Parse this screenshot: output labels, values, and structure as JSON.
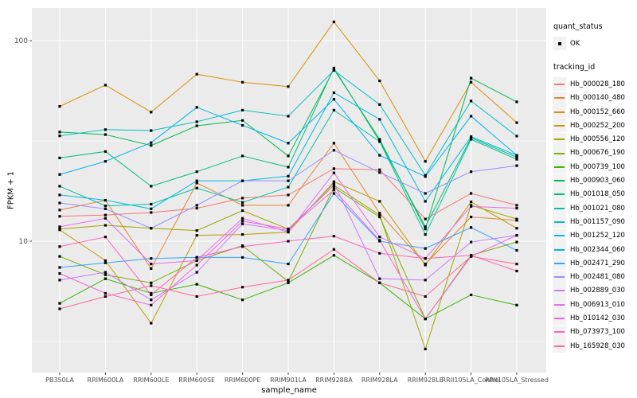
{
  "chart_data": {
    "type": "line",
    "title": "",
    "xlabel": "sample_name",
    "ylabel": "FPKM + 1",
    "y_scale": "log10",
    "ylim": [
      2.2,
      145
    ],
    "y_ticks": [
      {
        "value": 100,
        "label": "100"
      },
      {
        "value": 10,
        "label": "10"
      }
    ],
    "y_minor": [
      31.62,
      3.162
    ],
    "grid": "on",
    "legend_position": "right",
    "panel_color": "#EBEBEB",
    "gridline_color": "#FFFFFF",
    "point_color": "#000000",
    "tick_label_color": "#4D4D4D",
    "categories": [
      "PB350LA",
      "RRIM600LA",
      "RRIM600LE",
      "RRIM600SE",
      "RRIM600PE",
      "RRIM901LA",
      "RRIM928BA",
      "RRIM928LA",
      "RRIM928LE",
      "RRII105LA_Control",
      "RRII105LA_Stressed"
    ],
    "series": [
      {
        "name": "Hb_000028_180",
        "color": "#F8766D",
        "values": [
          13.3,
          13.5,
          13.9,
          14.6,
          16.4,
          17.0,
          23.0,
          22.7,
          12.9,
          17.3,
          15.1
        ]
      },
      {
        "name": "Hb_000140_480",
        "color": "#EA8331",
        "values": [
          14.3,
          16.0,
          7.3,
          19.5,
          15.1,
          15.1,
          30.8,
          13.8,
          7.7,
          13.2,
          12.7
        ]
      },
      {
        "name": "Hb_000152_660",
        "color": "#D89000",
        "values": [
          47,
          60,
          44,
          68,
          62,
          59,
          124,
          63,
          25,
          62,
          39
        ]
      },
      {
        "name": "Hb_000252_200",
        "color": "#C09B00",
        "values": [
          11.4,
          8.0,
          3.9,
          10.7,
          10.8,
          11.1,
          19.8,
          15.8,
          7.6,
          15.7,
          11.6
        ]
      },
      {
        "name": "Hb_000556_120",
        "color": "#A3A500",
        "values": [
          11.5,
          12.0,
          11.6,
          11.3,
          14.2,
          11.5,
          19.0,
          13.5,
          2.9,
          15.1,
          12.9
        ]
      },
      {
        "name": "Hb_000676_190",
        "color": "#7CAE00",
        "values": [
          8.4,
          6.8,
          6.2,
          8.0,
          9.5,
          6.3,
          18.5,
          13.2,
          4.1,
          8.5,
          9.9
        ]
      },
      {
        "name": "Hb_000739_100",
        "color": "#39B600",
        "values": [
          4.9,
          6.5,
          5.5,
          6.1,
          5.1,
          6.2,
          8.5,
          6.2,
          4.1,
          5.4,
          4.8
        ]
      },
      {
        "name": "Hb_000903_060",
        "color": "#00BB4E",
        "values": [
          35,
          34,
          30,
          37.6,
          40,
          26.6,
          72,
          32.2,
          11.5,
          65,
          49.5
        ]
      },
      {
        "name": "Hb_001018_050",
        "color": "#00BF7D",
        "values": [
          26,
          28,
          18.8,
          22.2,
          26.6,
          23.4,
          73,
          31.5,
          11.8,
          32.8,
          26.2
        ]
      },
      {
        "name": "Hb_001021_080",
        "color": "#00C1A3",
        "values": [
          18.8,
          15.0,
          15.3,
          18.4,
          15.6,
          18.6,
          45,
          31.4,
          10.8,
          32.2,
          25.6
        ]
      },
      {
        "name": "Hb_001157_090",
        "color": "#00BFC4",
        "values": [
          33.5,
          36,
          35.6,
          39.4,
          45,
          42,
          71,
          48,
          21.3,
          50,
          33.4
        ]
      },
      {
        "name": "Hb_001252_120",
        "color": "#00BAE0",
        "values": [
          17.0,
          16.0,
          14.5,
          20.0,
          20.0,
          21.1,
          55,
          40.5,
          15.8,
          33.2,
          26.8
        ]
      },
      {
        "name": "Hb_002344_060",
        "color": "#00B0F6",
        "values": [
          21.5,
          25,
          31,
          46.5,
          37.8,
          30.8,
          51,
          26.8,
          21.0,
          42,
          26.8
        ]
      },
      {
        "name": "Hb_002471_290",
        "color": "#35A2FF",
        "values": [
          7.4,
          7.8,
          8.2,
          8.3,
          8.3,
          7.7,
          17.3,
          10.0,
          9.2,
          11.7,
          9.0
        ]
      },
      {
        "name": "Hb_002481_080",
        "color": "#9590FF",
        "values": [
          15.5,
          14.5,
          11.6,
          15.1,
          20.0,
          20.0,
          28.4,
          22.0,
          17.3,
          22.2,
          23.8
        ]
      },
      {
        "name": "Hb_002889_030",
        "color": "#C77CFF",
        "values": [
          6.4,
          7.0,
          5.1,
          7.0,
          12.2,
          11.3,
          19.5,
          6.5,
          6.4,
          9.9,
          10.7
        ]
      },
      {
        "name": "Hb_006913_010",
        "color": "#E76BF3",
        "values": [
          11.8,
          13.0,
          7.7,
          8.0,
          13.0,
          11.1,
          21.9,
          10.5,
          8.2,
          14.9,
          14.6
        ]
      },
      {
        "name": "Hb_010142_030",
        "color": "#FA62DB",
        "values": [
          6.9,
          5.5,
          4.8,
          7.6,
          12.6,
          11.5,
          18.0,
          10.1,
          4.1,
          8.4,
          10.7
        ]
      },
      {
        "name": "Hb_073973_100",
        "color": "#FF62BC",
        "values": [
          9.4,
          10.5,
          5.4,
          8.3,
          9.4,
          10.0,
          10.6,
          8.7,
          8.2,
          8.5,
          7.1
        ]
      },
      {
        "name": "Hb_165928_030",
        "color": "#FF6A98",
        "values": [
          4.6,
          5.3,
          6.0,
          5.3,
          5.9,
          6.4,
          9.1,
          6.2,
          5.3,
          8.4,
          7.7
        ]
      }
    ]
  },
  "legend": {
    "quant_status": {
      "title": "quant_status",
      "items": [
        {
          "label": "OK"
        }
      ]
    },
    "tracking_id": {
      "title": "tracking_id"
    }
  },
  "axes": {
    "x_title": "sample_name",
    "y_title": "FPKM + 1"
  }
}
